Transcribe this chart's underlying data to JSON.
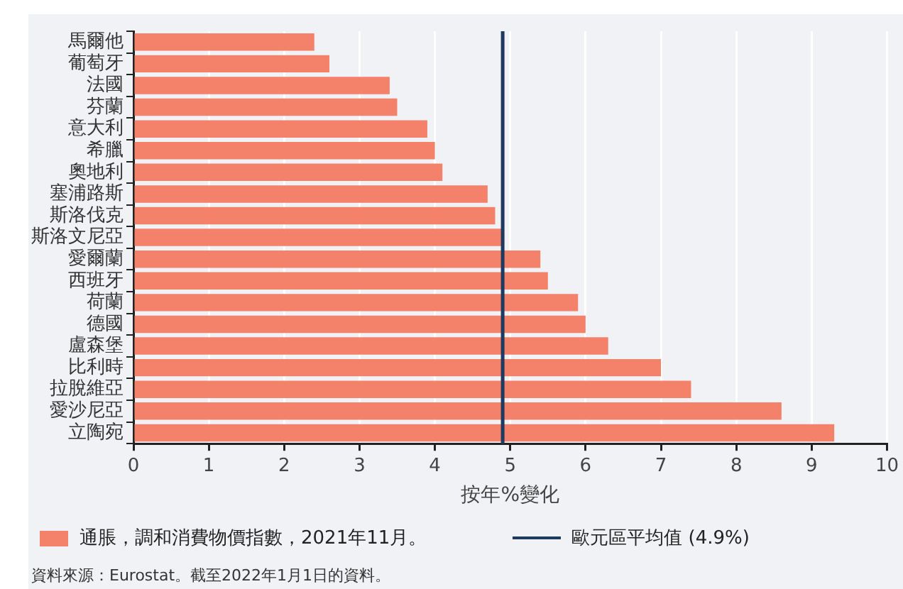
{
  "chart_data": {
    "type": "bar",
    "orientation": "horizontal",
    "xlabel": "按年%變化",
    "categories": [
      "馬爾他",
      "葡萄牙",
      "法國",
      "芬蘭",
      "意大利",
      "希臘",
      "奧地利",
      "塞浦路斯",
      "斯洛伐克",
      "斯洛文尼亞",
      "愛爾蘭",
      "西班牙",
      "荷蘭",
      "德國",
      "盧森堡",
      "比利時",
      "拉脫維亞",
      "愛沙尼亞",
      "立陶宛"
    ],
    "series": [
      {
        "name": "通脹，調和消費物價指數，2021年11月。",
        "color": "#f4826a",
        "values": [
          2.4,
          2.6,
          3.4,
          3.5,
          3.9,
          4.0,
          4.1,
          4.7,
          4.8,
          4.9,
          5.4,
          5.5,
          5.9,
          6.0,
          6.3,
          7.0,
          7.4,
          8.6,
          9.3
        ]
      }
    ],
    "xlim": [
      0,
      10
    ],
    "xticks": [
      0,
      1,
      2,
      3,
      4,
      5,
      6,
      7,
      8,
      9,
      10
    ],
    "grid": "x",
    "legend": "bottom",
    "ref_lines": [
      {
        "axis": "x",
        "value": 4.9,
        "label": "歐元區平均值 (4.9%)",
        "color": "#1f3a5f"
      }
    ],
    "annotations": [
      "資料來源：Eurostat。截至2022年1月1日的資料。"
    ]
  }
}
